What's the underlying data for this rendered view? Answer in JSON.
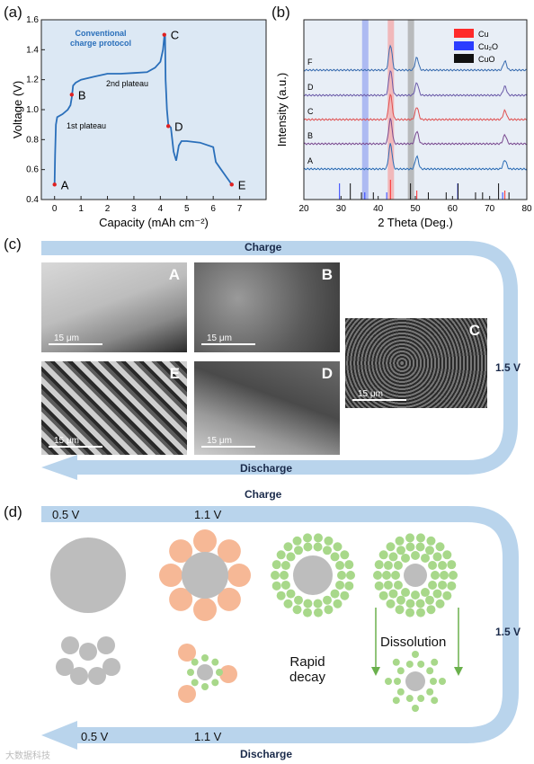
{
  "panels": {
    "a": "(a)",
    "b": "(b)",
    "c": "(c)",
    "d": "(d)"
  },
  "colors": {
    "curve": "#2a6fba",
    "marker_red": "#e02020",
    "arrow": "#b9d4ec",
    "cu": "#ff2a2a",
    "cu2o": "#2b3dff",
    "cuo": "#111111",
    "copper_oxide_particle": "#f6b896",
    "dissolved_particle": "#a8d88a",
    "core": "#bdbdbd"
  },
  "chart_data": [
    {
      "type": "line",
      "title": "Conventional charge protocol",
      "xlabel": "Capacity (mAh cm⁻²)",
      "ylabel": "Voltage (V)",
      "xlim": [
        -0.5,
        8
      ],
      "ylim": [
        0.4,
        1.6
      ],
      "xticks": [
        0,
        1,
        2,
        3,
        4,
        5,
        6,
        7
      ],
      "yticks": [
        0.4,
        0.6,
        0.8,
        1.0,
        1.2,
        1.4,
        1.6
      ],
      "x": [
        0.0,
        0.02,
        0.05,
        0.1,
        0.3,
        0.5,
        0.6,
        0.65,
        0.7,
        0.8,
        1.0,
        1.5,
        2.0,
        2.5,
        3.0,
        3.5,
        3.8,
        4.0,
        4.1,
        4.15,
        4.18,
        4.2,
        4.25,
        4.3,
        4.4,
        4.5,
        4.6,
        4.7,
        4.8,
        5.0,
        5.5,
        6.0,
        6.1,
        6.3,
        6.5,
        6.7
      ],
      "y": [
        0.5,
        0.7,
        0.9,
        0.95,
        0.97,
        1.0,
        1.03,
        1.08,
        1.16,
        1.18,
        1.2,
        1.22,
        1.24,
        1.24,
        1.245,
        1.25,
        1.28,
        1.32,
        1.4,
        1.49,
        1.5,
        1.2,
        1.0,
        0.9,
        0.88,
        0.72,
        0.66,
        0.76,
        0.79,
        0.79,
        0.78,
        0.75,
        0.65,
        0.6,
        0.55,
        0.5
      ],
      "points": [
        {
          "label": "A",
          "x": 0.0,
          "y": 0.5
        },
        {
          "label": "B",
          "x": 0.65,
          "y": 1.1
        },
        {
          "label": "C",
          "x": 4.15,
          "y": 1.5
        },
        {
          "label": "D",
          "x": 4.3,
          "y": 0.89
        },
        {
          "label": "E",
          "x": 6.7,
          "y": 0.5
        }
      ],
      "annotations": [
        "1st plateau",
        "2nd plateau"
      ]
    },
    {
      "type": "line",
      "xlabel": "2 Theta (Deg.)",
      "ylabel": "Intensity (a.u.)",
      "xlim": [
        20,
        80
      ],
      "xticks": [
        20,
        30,
        40,
        50,
        60,
        70,
        80
      ],
      "legend": [
        "Cu",
        "Cu₂O",
        "CuO"
      ],
      "legend_position": "top-right",
      "series": [
        {
          "name": "F",
          "color": "#3a6db0",
          "peaks": [
            43.3,
            50.4,
            74.1
          ]
        },
        {
          "name": "D",
          "color": "#6a5aa8",
          "peaks": [
            43.3,
            50.4,
            74.1
          ]
        },
        {
          "name": "C",
          "color": "#e05050",
          "peaks": [
            43.3,
            50.4,
            74.1
          ]
        },
        {
          "name": "B",
          "color": "#7a4a90",
          "peaks": [
            43.3,
            50.4,
            74.1
          ]
        },
        {
          "name": "A",
          "color": "#2b6cb5",
          "peaks": [
            43.3,
            50.4,
            74.1
          ]
        }
      ],
      "highlight_bands": [
        {
          "phase": "Cu₂O",
          "x": 36.4,
          "color": "#9aa8f0"
        },
        {
          "phase": "Cu",
          "x": 43.3,
          "color": "#f4a5a5"
        },
        {
          "phase": "CuO",
          "x": 48.7,
          "color": "#a8a8a8"
        }
      ],
      "reference_lines": {
        "Cu": [
          43.3,
          50.4,
          74.1
        ],
        "Cu2O": [
          29.6,
          36.4,
          42.3,
          61.4,
          73.5
        ],
        "CuO": [
          32.5,
          35.5,
          38.7,
          48.7,
          53.5,
          58.3,
          61.5,
          66.2,
          68.1,
          72.4,
          75.2
        ]
      }
    }
  ],
  "panel_c": {
    "flow_top": "Charge",
    "flow_bottom": "Discharge",
    "voltage": "1.5 V",
    "images": [
      {
        "letter": "A",
        "scale": "15 μm"
      },
      {
        "letter": "B",
        "scale": "15 μm"
      },
      {
        "letter": "C",
        "scale": "15 μm"
      },
      {
        "letter": "E",
        "scale": "15 μm"
      },
      {
        "letter": "D",
        "scale": "15 μm"
      }
    ]
  },
  "panel_d": {
    "flow_top": "Charge",
    "flow_bottom": "Discharge",
    "voltage": "1.5 V",
    "top_v1": "0.5 V",
    "top_v2": "1.1 V",
    "bottom_v1": "0.5 V",
    "bottom_v2": "1.1 V",
    "rapid_decay": "Rapid\ndecay",
    "dissolution": "Dissolution"
  },
  "watermark": "大数据科技"
}
